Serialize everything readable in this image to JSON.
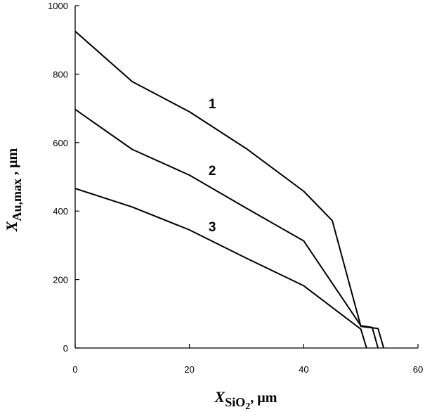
{
  "chart_data": {
    "type": "line",
    "xlabel": {
      "var": "X",
      "sub": "SiO2",
      "sub_main": "SiO",
      "sub_digit": "2",
      "unit": ", µm"
    },
    "ylabel": {
      "var": "X",
      "sub": "Au,max",
      "unit": " , µm"
    },
    "xlim": [
      0,
      60
    ],
    "ylim": [
      0,
      1000
    ],
    "xticks": [
      0,
      20,
      40,
      60
    ],
    "yticks": [
      0,
      200,
      400,
      600,
      800,
      1000
    ],
    "grid": false,
    "series": [
      {
        "name": "1",
        "label_at": [
          24,
          715
        ],
        "points": [
          [
            0,
            925
          ],
          [
            10,
            778
          ],
          [
            20,
            690
          ],
          [
            30,
            582
          ],
          [
            40,
            458
          ],
          [
            45,
            372
          ],
          [
            50,
            63
          ],
          [
            53,
            57
          ],
          [
            54,
            0
          ]
        ]
      },
      {
        "name": "2",
        "label_at": [
          24,
          520
        ],
        "points": [
          [
            0,
            697
          ],
          [
            10,
            580
          ],
          [
            20,
            505
          ],
          [
            30,
            408
          ],
          [
            40,
            313
          ],
          [
            50,
            65
          ],
          [
            52,
            60
          ],
          [
            53,
            0
          ]
        ]
      },
      {
        "name": "3",
        "label_at": [
          24,
          355
        ],
        "points": [
          [
            0,
            466
          ],
          [
            10,
            412
          ],
          [
            20,
            345
          ],
          [
            30,
            262
          ],
          [
            40,
            182
          ],
          [
            50,
            55
          ],
          [
            51,
            0
          ]
        ]
      }
    ]
  }
}
